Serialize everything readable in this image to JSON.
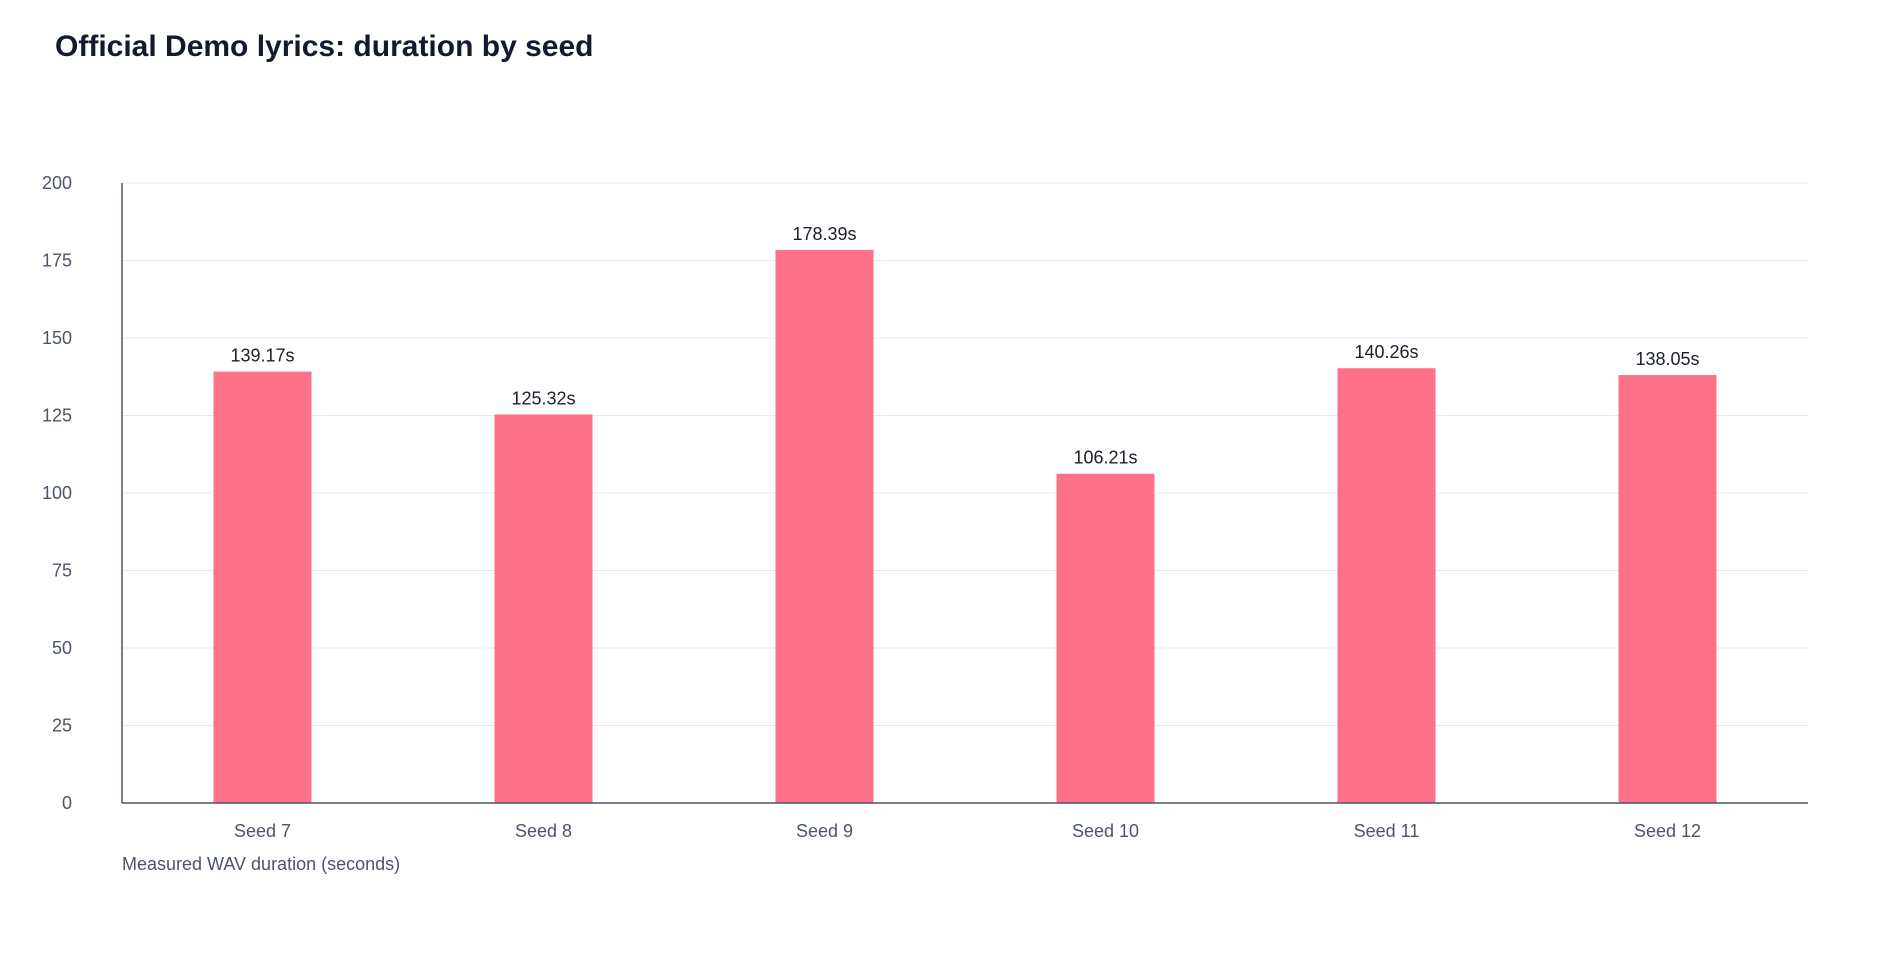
{
  "chart_data": {
    "type": "bar",
    "title": "Official Demo lyrics: duration by seed",
    "categories": [
      "Seed 7",
      "Seed 8",
      "Seed 9",
      "Seed 10",
      "Seed 11",
      "Seed 12"
    ],
    "values": [
      139.17,
      125.32,
      178.39,
      106.21,
      140.26,
      138.05
    ],
    "value_labels": [
      "139.17s",
      "125.32s",
      "178.39s",
      "106.21s",
      "140.26s",
      "138.05s"
    ],
    "xlabel": "Measured WAV duration (seconds)",
    "ylabel": "",
    "ylim": [
      0,
      200
    ],
    "yticks": [
      0,
      25,
      50,
      75,
      100,
      125,
      150,
      175,
      200
    ],
    "grid": true,
    "legend": "none",
    "colors": {
      "bar": "#fe7289",
      "grid": "#e6e8ec",
      "axis": "#4b5567"
    }
  }
}
